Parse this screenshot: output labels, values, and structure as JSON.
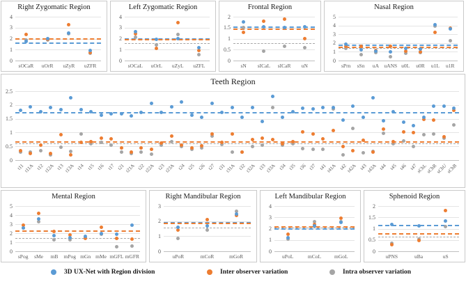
{
  "colors": {
    "blue": "#5B9BD5",
    "orange": "#ED7D31",
    "gray": "#A5A5A5",
    "grid": "#E4E4E4",
    "axis": "#BFBFBF",
    "border": "#C9C9C9",
    "tick_text": "#595959"
  },
  "legend": {
    "items": [
      {
        "label": "3D UX-Net with Region division",
        "color": "#5B9BD5"
      },
      {
        "label": "Inter observer variation",
        "color": "#ED7D31"
      },
      {
        "label": "Intra observer variation",
        "color": "#A5A5A5"
      }
    ]
  },
  "chart_data": [
    {
      "type": "scatter",
      "title": "Right Zygomatic Region",
      "ylim": [
        0,
        4
      ],
      "yticks": [
        0,
        1,
        2,
        3,
        4
      ],
      "categories": [
        "sOCaR",
        "uOrR",
        "uZyR",
        "uZFR"
      ],
      "rotated_labels": false,
      "series": [
        {
          "name": "3D UX-Net with Region division",
          "color_key": "blue",
          "values": [
            1.75,
            2.0,
            2.5,
            0.9
          ]
        },
        {
          "name": "Inter observer variation",
          "color_key": "orange",
          "values": [
            2.35,
            1.95,
            3.3,
            0.7
          ]
        },
        {
          "name": "Intra observer variation",
          "color_key": "gray",
          "values": [
            1.85,
            1.88,
            2.45,
            0.65
          ]
        }
      ],
      "mean_lines": [
        {
          "color_key": "blue",
          "value": 1.65
        },
        {
          "color_key": "orange",
          "value": 2.05
        }
      ]
    },
    {
      "type": "scatter",
      "title": "Left Zygomatic Region",
      "ylim": [
        0,
        4
      ],
      "yticks": [
        0,
        1,
        2,
        3,
        4
      ],
      "categories": [
        "sOCaL",
        "uOrL",
        "uZyL",
        "uZFL"
      ],
      "rotated_labels": false,
      "series": [
        {
          "name": "3D UX-Net with Region division",
          "color_key": "blue",
          "values": [
            2.65,
            1.95,
            2.0,
            1.15
          ]
        },
        {
          "name": "Inter observer variation",
          "color_key": "orange",
          "values": [
            2.45,
            1.1,
            3.45,
            0.95
          ]
        },
        {
          "name": "Intra observer variation",
          "color_key": "gray",
          "values": [
            2.1,
            1.45,
            2.4,
            0.55
          ]
        }
      ],
      "mean_lines": [
        {
          "color_key": "blue",
          "value": 2.05
        },
        {
          "color_key": "orange",
          "value": 1.95
        },
        {
          "color_key": "gray",
          "value": 1.6
        }
      ]
    },
    {
      "type": "scatter",
      "title": "Frontal Region",
      "ylim": [
        0,
        2
      ],
      "yticks": [
        0,
        0.5,
        1,
        1.5,
        2
      ],
      "categories": [
        "sN",
        "sICaL",
        "sICaR",
        "uN"
      ],
      "rotated_labels": false,
      "series": [
        {
          "name": "3D UX-Net with Region division",
          "color_key": "blue",
          "values": [
            1.75,
            1.55,
            1.5,
            1.55
          ]
        },
        {
          "name": "Inter observer variation",
          "color_key": "orange",
          "values": [
            1.3,
            1.8,
            1.9,
            1.0
          ]
        },
        {
          "name": "Intra observer variation",
          "color_key": "gray",
          "values": [
            1.5,
            0.42,
            0.65,
            0.6
          ]
        }
      ],
      "mean_lines": [
        {
          "color_key": "blue",
          "value": 1.55
        },
        {
          "color_key": "orange",
          "value": 1.45
        },
        {
          "color_key": "gray",
          "value": 0.8
        }
      ]
    },
    {
      "type": "scatter",
      "title": "Nasal Region",
      "ylim": [
        0,
        5
      ],
      "yticks": [
        0,
        1,
        2,
        3,
        4,
        5
      ],
      "categories": [
        "sPrn",
        "sSn",
        "uA",
        "uANS",
        "u0L",
        "u0R",
        "u1L",
        "u1R"
      ],
      "rotated_labels": false,
      "series": [
        {
          "name": "3D UX-Net with Region division",
          "color_key": "blue",
          "values": [
            1.9,
            1.2,
            1.05,
            1.0,
            1.35,
            1.3,
            4.1,
            3.65
          ]
        },
        {
          "name": "Inter observer variation",
          "color_key": "orange",
          "values": [
            1.65,
            1.65,
            1.15,
            1.6,
            1.1,
            1.0,
            3.2,
            3.7
          ]
        },
        {
          "name": "Intra observer variation",
          "color_key": "gray",
          "values": [
            1.35,
            0.65,
            0.9,
            0.4,
            0.8,
            0.9,
            3.95,
            2.3
          ]
        }
      ],
      "mean_lines": [
        {
          "color_key": "blue",
          "value": 1.85
        },
        {
          "color_key": "orange",
          "value": 1.6
        },
        {
          "color_key": "gray",
          "value": 1.45
        }
      ]
    },
    {
      "type": "scatter",
      "title": "Teeth Region",
      "ylim": [
        0,
        2.5
      ],
      "yticks": [
        0,
        0.5,
        1,
        1.5,
        2,
        2.5
      ],
      "categories": [
        "t11",
        "t11A",
        "t12",
        "t12A",
        "t13",
        "t13A",
        "t14",
        "t15",
        "t16",
        "t17",
        "t21",
        "t21A",
        "t22",
        "t22A",
        "t23",
        "t23A",
        "t24",
        "t25",
        "t26",
        "t27",
        "t31",
        "t31A",
        "t32",
        "t32A",
        "t33",
        "t33A",
        "t34",
        "t35",
        "t36",
        "t37",
        "t41",
        "t41A",
        "t42",
        "t42A",
        "t43",
        "t43A",
        "t44",
        "t45",
        "t46",
        "t47",
        "sChL",
        "sChR",
        "sChU",
        "sChB"
      ],
      "rotated_labels": true,
      "series": [
        {
          "name": "3D UX-Net with Region division",
          "color_key": "blue",
          "values": [
            1.8,
            1.92,
            1.75,
            1.9,
            1.82,
            2.27,
            1.82,
            1.75,
            1.62,
            1.68,
            1.68,
            1.6,
            1.72,
            2.07,
            1.72,
            1.93,
            2.12,
            1.62,
            1.55,
            2.05,
            1.72,
            1.9,
            1.55,
            1.9,
            1.4,
            2.3,
            1.55,
            1.75,
            1.88,
            1.85,
            1.9,
            1.9,
            1.46,
            1.95,
            1.56,
            2.25,
            1.42,
            1.75,
            1.37,
            1.25,
            1.55,
            1.95,
            1.95,
            1.88
          ]
        },
        {
          "name": "Inter observer variation",
          "color_key": "orange",
          "values": [
            0.35,
            0.25,
            0.55,
            0.25,
            0.93,
            0.2,
            0.65,
            0.68,
            0.8,
            0.78,
            0.45,
            0.3,
            0.45,
            0.38,
            0.62,
            0.88,
            0.55,
            0.45,
            0.52,
            0.95,
            0.65,
            0.95,
            0.3,
            0.75,
            0.8,
            0.75,
            0.6,
            0.68,
            1.02,
            0.95,
            0.78,
            1.08,
            0.5,
            0.33,
            0.73,
            0.28,
            1.13,
            0.68,
            1.03,
            1.0,
            1.48,
            1.45,
            0.85,
            1.8
          ]
        },
        {
          "name": "Intra observer variation",
          "color_key": "gray",
          "values": [
            0.3,
            0.28,
            0.33,
            0.2,
            0.46,
            0.32,
            0.95,
            0.6,
            0.65,
            0.55,
            0.28,
            0.25,
            0.3,
            0.22,
            0.55,
            0.68,
            0.5,
            0.4,
            0.45,
            0.88,
            0.58,
            0.3,
            0.28,
            0.5,
            0.55,
            1.9,
            0.55,
            0.6,
            0.42,
            0.4,
            0.38,
            1.85,
            0.2,
            1.16,
            0.27,
            0.32,
            0.98,
            0.6,
            0.7,
            0.48,
            0.92,
            0.95,
            0.8,
            1.28
          ]
        }
      ],
      "mean_lines": [
        {
          "color_key": "blue",
          "value": 1.75
        },
        {
          "color_key": "orange",
          "value": 0.68
        },
        {
          "color_key": "gray",
          "value": 0.6
        }
      ]
    },
    {
      "type": "scatter",
      "title": "Mental Region",
      "ylim": [
        0,
        5
      ],
      "yticks": [
        0,
        1,
        2,
        3,
        4,
        5
      ],
      "categories": [
        "sPog",
        "sMe",
        "mB",
        "mPog",
        "mGn",
        "mMe",
        "mGFL",
        "mGFR"
      ],
      "rotated_labels": false,
      "series": [
        {
          "name": "3D UX-Net with Region division",
          "color_key": "blue",
          "values": [
            2.6,
            3.6,
            1.75,
            1.5,
            1.65,
            2.0,
            1.9,
            2.85
          ]
        },
        {
          "name": "Inter observer variation",
          "color_key": "orange",
          "values": [
            2.9,
            4.2,
            2.2,
            1.8,
            1.45,
            2.65,
            1.45,
            1.35
          ]
        },
        {
          "name": "Intra observer variation",
          "color_key": "gray",
          "values": [
            2.55,
            3.25,
            1.25,
            1.3,
            1.5,
            1.85,
            0.5,
            0.55
          ]
        }
      ],
      "mean_lines": [
        {
          "color_key": "blue",
          "value": 2.28
        },
        {
          "color_key": "orange",
          "value": 2.3
        },
        {
          "color_key": "gray",
          "value": 1.5
        }
      ]
    },
    {
      "type": "scatter",
      "title": "Right Mandibular Region",
      "ylim": [
        0,
        3
      ],
      "yticks": [
        0,
        1,
        2,
        3
      ],
      "categories": [
        "uPoR",
        "mCoR",
        "mGoR"
      ],
      "rotated_labels": false,
      "series": [
        {
          "name": "3D UX-Net with Region division",
          "color_key": "blue",
          "values": [
            1.6,
            1.7,
            2.45
          ]
        },
        {
          "name": "Inter observer variation",
          "color_key": "orange",
          "values": [
            1.4,
            2.1,
            2.4
          ]
        },
        {
          "name": "Intra observer variation",
          "color_key": "gray",
          "values": [
            0.85,
            1.4,
            2.65
          ]
        }
      ],
      "mean_lines": [
        {
          "color_key": "blue",
          "value": 1.95
        },
        {
          "color_key": "orange",
          "value": 1.9
        },
        {
          "color_key": "gray",
          "value": 1.55
        }
      ]
    },
    {
      "type": "scatter",
      "title": "Left Mandibular Region",
      "ylim": [
        0,
        4
      ],
      "yticks": [
        0,
        1,
        2,
        3,
        4
      ],
      "categories": [
        "uPoL",
        "mCoL",
        "mGoL"
      ],
      "rotated_labels": false,
      "series": [
        {
          "name": "3D UX-Net with Region division",
          "color_key": "blue",
          "values": [
            1.2,
            2.25,
            2.55
          ]
        },
        {
          "name": "Inter observer variation",
          "color_key": "orange",
          "values": [
            1.5,
            2.35,
            2.95
          ]
        },
        {
          "name": "Intra observer variation",
          "color_key": "gray",
          "values": [
            1.1,
            2.6,
            2.6
          ]
        }
      ],
      "mean_lines": [
        {
          "color_key": "blue",
          "value": 2.05
        },
        {
          "color_key": "orange",
          "value": 2.2
        },
        {
          "color_key": "gray",
          "value": 2.1
        }
      ]
    },
    {
      "type": "scatter",
      "title": "Sphenoid Region",
      "ylim": [
        0,
        2
      ],
      "yticks": [
        0,
        0.5,
        1,
        1.5,
        2
      ],
      "categories": [
        "uPNS",
        "uBa",
        "uS"
      ],
      "rotated_labels": false,
      "series": [
        {
          "name": "3D UX-Net with Region division",
          "color_key": "blue",
          "values": [
            1.18,
            1.13,
            1.35
          ]
        },
        {
          "name": "Inter observer variation",
          "color_key": "orange",
          "values": [
            0.3,
            0.47,
            1.8
          ]
        },
        {
          "name": "Intra observer variation",
          "color_key": "gray",
          "values": [
            0.35,
            0.55,
            1.08
          ]
        }
      ],
      "mean_lines": [
        {
          "color_key": "blue",
          "value": 1.18
        },
        {
          "color_key": "orange",
          "value": 0.8
        },
        {
          "color_key": "gray",
          "value": 0.65
        }
      ]
    }
  ]
}
